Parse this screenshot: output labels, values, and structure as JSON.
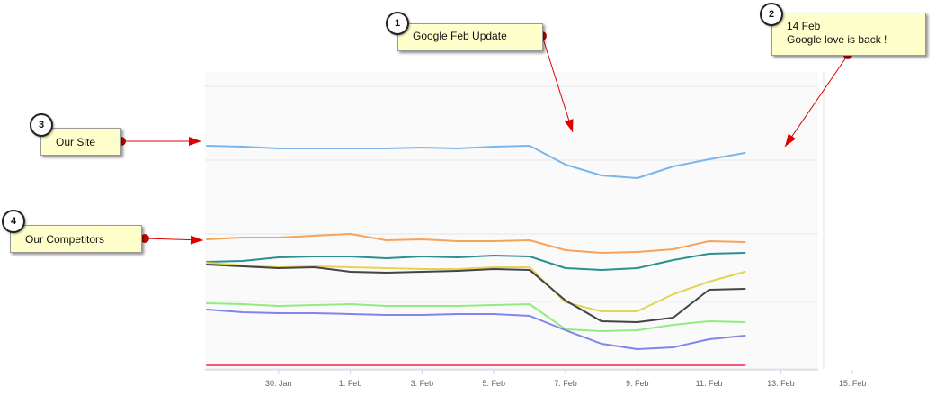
{
  "chart_data": {
    "type": "line",
    "title": "",
    "xlabel": "",
    "ylabel": "",
    "x": [
      "28. Jan",
      "29. Jan",
      "30. Jan",
      "31. Jan",
      "1. Feb",
      "2. Feb",
      "3. Feb",
      "4. Feb",
      "5. Feb",
      "6. Feb",
      "7. Feb",
      "8. Feb",
      "9. Feb",
      "10. Feb",
      "11. Feb",
      "12. Feb",
      "13. Feb",
      "14. Feb"
    ],
    "x_tick_labels": [
      "30. Jan",
      "1. Feb",
      "3. Feb",
      "5. Feb",
      "7. Feb",
      "9. Feb",
      "11. Feb",
      "13. Feb",
      "15. Feb"
    ],
    "ylim": [
      0,
      330
    ],
    "grid": true,
    "legend": "none",
    "series": [
      {
        "color": "#7cb5ec",
        "values": [
          248,
          247,
          245,
          245,
          245,
          245,
          246,
          245,
          247,
          248,
          227,
          215,
          212,
          225,
          233,
          240,
          null,
          null
        ]
      },
      {
        "color": "#f7a35c",
        "values": [
          144,
          146,
          146,
          148,
          150,
          143,
          144,
          142,
          142,
          143,
          132,
          129,
          130,
          133,
          142,
          141,
          null,
          null
        ]
      },
      {
        "color": "#2b908f",
        "values": [
          119,
          120,
          124,
          125,
          125,
          123,
          125,
          124,
          126,
          125,
          112,
          110,
          112,
          121,
          128,
          129,
          null,
          null
        ]
      },
      {
        "color": "#e4d354",
        "values": [
          118,
          115,
          113,
          114,
          113,
          112,
          111,
          111,
          113,
          113,
          74,
          64,
          64,
          83,
          97,
          108,
          null,
          null
        ]
      },
      {
        "color": "#434348",
        "values": [
          116,
          114,
          112,
          113,
          108,
          107,
          108,
          109,
          111,
          110,
          76,
          53,
          52,
          57,
          88,
          89,
          null,
          null
        ]
      },
      {
        "color": "#90ed7d",
        "values": [
          73,
          72,
          70,
          71,
          72,
          70,
          70,
          70,
          71,
          72,
          44,
          42,
          43,
          49,
          53,
          52,
          null,
          null
        ]
      },
      {
        "color": "#8085e9",
        "values": [
          66,
          63,
          62,
          62,
          61,
          60,
          60,
          61,
          61,
          59,
          43,
          28,
          22,
          24,
          33,
          37,
          null,
          null
        ]
      },
      {
        "color": "#f15c80",
        "values": [
          4,
          4,
          4,
          4,
          4,
          4,
          4,
          4,
          4,
          4,
          4,
          4,
          4,
          4,
          4,
          4,
          null,
          null
        ]
      }
    ]
  },
  "annotations": [
    {
      "number": "1",
      "lines": [
        "Google Feb Update"
      ]
    },
    {
      "number": "2",
      "lines": [
        "14 Feb",
        "Google love is back !"
      ]
    },
    {
      "number": "3",
      "lines": [
        "Our Site"
      ]
    },
    {
      "number": "4",
      "lines": [
        "Our Competitors"
      ]
    }
  ],
  "colors": {
    "arrow": "#dd0000",
    "note_bg": "#ffffcc",
    "grid": "#e6e6e6"
  }
}
